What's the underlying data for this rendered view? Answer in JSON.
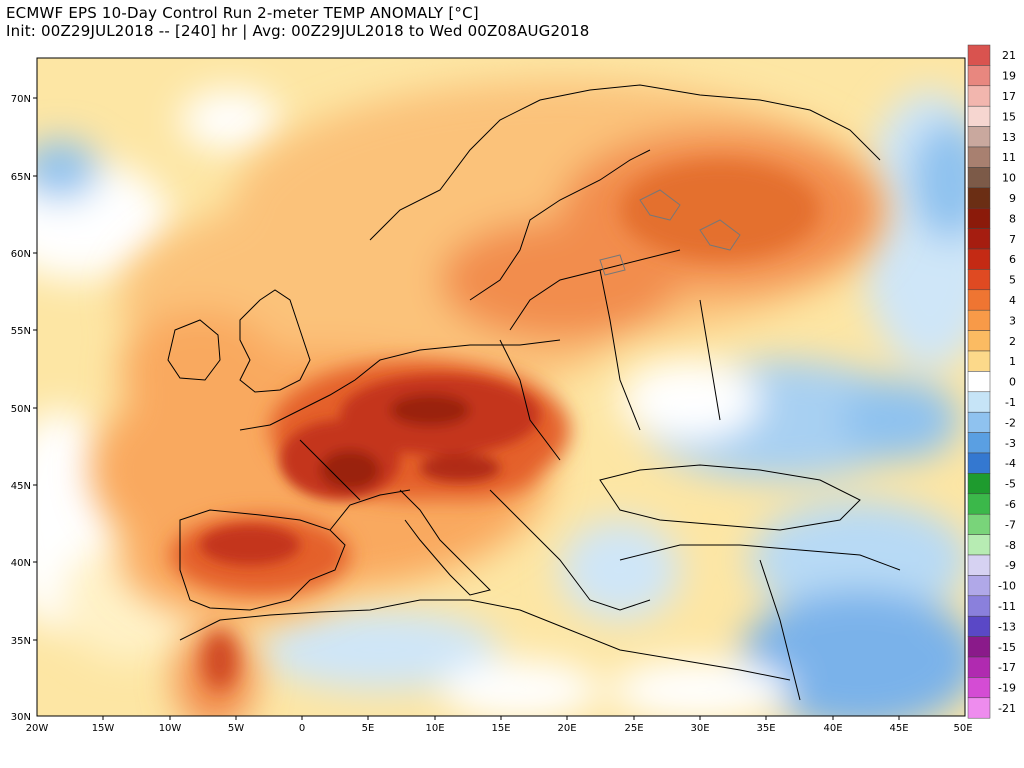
{
  "title": {
    "line1": "ECMWF EPS 10-Day Control Run 2-meter TEMP ANOMALY [°C]",
    "line2": "Init: 00Z29JUL2018 -- [240] hr | Avg: 00Z29JUL2018 to Wed 00Z08AUG2018"
  },
  "map": {
    "lat_labels": [
      "70N",
      "65N",
      "60N",
      "55N",
      "50N",
      "45N",
      "40N",
      "35N",
      "30N"
    ],
    "lon_labels": [
      "20W",
      "15W",
      "10W",
      "5W",
      "0",
      "5E",
      "10E",
      "15E",
      "20E",
      "25E",
      "30E",
      "35E",
      "40E",
      "45E",
      "50E"
    ],
    "colors": {
      "ocean_base": "#fde8a8",
      "land_line": "#000000",
      "lake_line": "#777777"
    }
  },
  "colorbar": {
    "labels": [
      "21",
      "19",
      "17",
      "15",
      "13",
      "11",
      "10",
      "9",
      "8",
      "7",
      "6",
      "5",
      "4",
      "3",
      "2",
      "1",
      "0",
      "-1",
      "-2",
      "-3",
      "-4",
      "-5",
      "-6",
      "-7",
      "-8",
      "-9",
      "-10",
      "-11",
      "-13",
      "-15",
      "-17",
      "-19",
      "-21"
    ],
    "colors": [
      "#d9534f",
      "#e8877f",
      "#f2b6ae",
      "#f6d6d0",
      "#c9a89e",
      "#a88070",
      "#7c5a48",
      "#6b2e14",
      "#8b1a0a",
      "#a51d10",
      "#c42a14",
      "#df4a22",
      "#ef7532",
      "#f89a48",
      "#fbbb62",
      "#fcd98a",
      "#ffffff",
      "#c6e4f7",
      "#8fc2ef",
      "#5a9fe2",
      "#3478d0",
      "#1e9b2e",
      "#3bb84a",
      "#79d47a",
      "#b7ecb3",
      "#d6d2f2",
      "#b0a8e8",
      "#8a80dc",
      "#5a48c6",
      "#8a1a8a",
      "#b02ab0",
      "#d44cd4",
      "#ee8cee"
    ]
  }
}
